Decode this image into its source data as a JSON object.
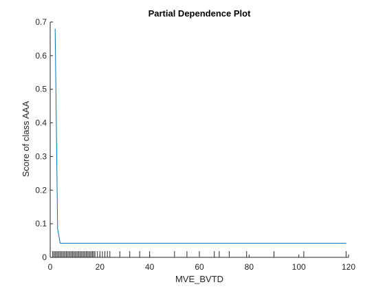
{
  "chart_data": {
    "type": "line",
    "title": "Partial Dependence Plot",
    "xlabel": "MVE_BVTD",
    "ylabel": "Score of class AAA",
    "xlim": [
      0,
      120
    ],
    "ylim": [
      0,
      0.7
    ],
    "xticks": [
      0,
      20,
      40,
      60,
      80,
      100,
      120
    ],
    "yticks": [
      0,
      0.1,
      0.2,
      0.3,
      0.4,
      0.5,
      0.6,
      0.7
    ],
    "grid": false,
    "line_color": "#0072BD",
    "series": [
      {
        "x": [
          2,
          3,
          4,
          5,
          10,
          20,
          40,
          60,
          80,
          100,
          119
        ],
        "y": [
          0.68,
          0.085,
          0.042,
          0.042,
          0.042,
          0.042,
          0.042,
          0.042,
          0.042,
          0.042,
          0.042
        ]
      }
    ],
    "rug_x": [
      1,
      1.5,
      2,
      2.5,
      3,
      3.5,
      4,
      4.5,
      5,
      5.5,
      6,
      6.5,
      7,
      7.5,
      8,
      8.5,
      9,
      9.5,
      10,
      10.5,
      11,
      11.5,
      12,
      12.5,
      13,
      13.5,
      14,
      14.5,
      15,
      15.5,
      16,
      16.5,
      17,
      17.5,
      18,
      19,
      20,
      21,
      22,
      23,
      24,
      28,
      32,
      36,
      40,
      50,
      55,
      60,
      66,
      68,
      72,
      79,
      90,
      102,
      119
    ]
  }
}
